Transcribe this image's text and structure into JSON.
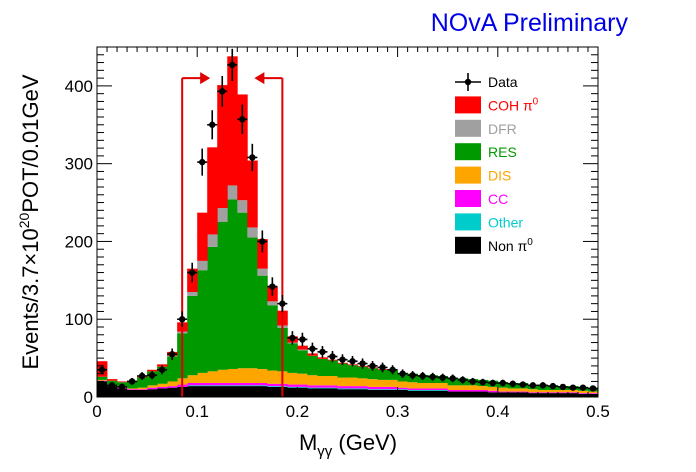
{
  "chart_data": {
    "type": "bar",
    "stacked": true,
    "title": "NOvA Preliminary",
    "title_color": "#0000e6",
    "xlabel": {
      "base": "M",
      "sub": "γγ",
      "unit": " (GeV)"
    },
    "ylabel": {
      "pre": "Events/3.7×10",
      "sup": "20",
      "post": "POT/0.01GeV"
    },
    "xlim": [
      0,
      0.5
    ],
    "ylim": [
      0,
      450
    ],
    "xticks": [
      0,
      0.1,
      0.2,
      0.3,
      0.4,
      0.5
    ],
    "xtick_labels": [
      "0",
      "0.1",
      "0.2",
      "0.3",
      "0.4",
      "0.5"
    ],
    "yticks": [
      0,
      100,
      200,
      300,
      400
    ],
    "ytick_labels": [
      "0",
      "100",
      "200",
      "300",
      "400"
    ],
    "bin_width": 0.01,
    "x": [
      0.005,
      0.015,
      0.025,
      0.035,
      0.045,
      0.055,
      0.065,
      0.075,
      0.085,
      0.095,
      0.105,
      0.115,
      0.125,
      0.135,
      0.145,
      0.155,
      0.165,
      0.175,
      0.185,
      0.195,
      0.205,
      0.215,
      0.225,
      0.235,
      0.245,
      0.255,
      0.265,
      0.275,
      0.285,
      0.295,
      0.305,
      0.315,
      0.325,
      0.335,
      0.345,
      0.355,
      0.365,
      0.375,
      0.385,
      0.395,
      0.405,
      0.415,
      0.425,
      0.435,
      0.445,
      0.455,
      0.465,
      0.475,
      0.485,
      0.495
    ],
    "series": [
      {
        "name": "Non π0",
        "legend_label": "Non π",
        "legend_sup": "0",
        "color": "#000000",
        "values": [
          20,
          14,
          11,
          9,
          9,
          10,
          11,
          12,
          13,
          14,
          14,
          14,
          14,
          14,
          14,
          14,
          14,
          13,
          13,
          12,
          12,
          11,
          11,
          11,
          10,
          10,
          10,
          9,
          9,
          9,
          9,
          8,
          8,
          8,
          8,
          7,
          7,
          7,
          7,
          6,
          6,
          6,
          6,
          5,
          5,
          5,
          5,
          5,
          4,
          4
        ]
      },
      {
        "name": "Other",
        "legend_label": "Other",
        "color": "#00cccc",
        "values": [
          0,
          0,
          0,
          0,
          0,
          0,
          0,
          0,
          0,
          1,
          1,
          1,
          1,
          1,
          1,
          1,
          1,
          1,
          1,
          1,
          1,
          1,
          1,
          1,
          1,
          1,
          1,
          1,
          1,
          1,
          1,
          1,
          1,
          1,
          1,
          0,
          0,
          0,
          0,
          0,
          0,
          0,
          0,
          0,
          0,
          0,
          0,
          0,
          0,
          0
        ]
      },
      {
        "name": "CC",
        "legend_label": "CC",
        "color": "#ff00ff",
        "values": [
          1,
          1,
          1,
          1,
          1,
          2,
          2,
          2,
          3,
          3,
          3,
          3,
          3,
          3,
          3,
          3,
          3,
          3,
          3,
          3,
          3,
          3,
          3,
          3,
          3,
          3,
          3,
          3,
          3,
          3,
          2,
          2,
          2,
          2,
          2,
          2,
          2,
          2,
          2,
          2,
          1,
          1,
          1,
          1,
          1,
          1,
          1,
          1,
          1,
          1
        ]
      },
      {
        "name": "DIS",
        "legend_label": "DIS",
        "color": "#ffa500",
        "values": [
          1,
          1,
          1,
          1,
          2,
          3,
          4,
          6,
          8,
          10,
          13,
          15,
          17,
          18,
          19,
          19,
          18,
          17,
          16,
          15,
          14,
          13,
          12,
          12,
          11,
          11,
          10,
          10,
          9,
          9,
          8,
          8,
          7,
          7,
          7,
          6,
          6,
          6,
          5,
          5,
          5,
          4,
          4,
          4,
          3,
          3,
          3,
          3,
          3,
          2
        ]
      },
      {
        "name": "RES",
        "legend_label": "RES",
        "color": "#009900",
        "values": [
          4,
          5,
          6,
          9,
          13,
          18,
          22,
          32,
          58,
          102,
          132,
          160,
          190,
          218,
          200,
          168,
          120,
          84,
          56,
          38,
          30,
          25,
          22,
          20,
          18,
          16,
          15,
          14,
          13,
          12,
          11,
          11,
          10,
          10,
          9,
          9,
          9,
          8,
          8,
          8,
          7,
          7,
          7,
          6,
          6,
          6,
          5,
          5,
          5,
          5
        ]
      },
      {
        "name": "DFR",
        "legend_label": "DFR",
        "color": "#a0a0a0",
        "values": [
          0,
          0,
          0,
          0,
          0,
          0,
          0,
          1,
          2,
          5,
          12,
          16,
          18,
          18,
          16,
          13,
          9,
          5,
          3,
          1,
          1,
          0,
          0,
          0,
          0,
          0,
          0,
          0,
          0,
          0,
          0,
          0,
          0,
          0,
          0,
          0,
          0,
          0,
          0,
          0,
          0,
          0,
          0,
          0,
          0,
          0,
          0,
          0,
          0,
          0
        ]
      },
      {
        "name": "COH π0",
        "legend_label": "COH π",
        "legend_sup": "0",
        "color": "#ff0000",
        "values": [
          20,
          2,
          1,
          1,
          1,
          2,
          3,
          5,
          12,
          30,
          62,
          112,
          158,
          166,
          136,
          86,
          38,
          19,
          19,
          8,
          5,
          3,
          2,
          1,
          1,
          1,
          1,
          1,
          1,
          0,
          0,
          0,
          0,
          0,
          0,
          0,
          0,
          0,
          0,
          0,
          0,
          0,
          0,
          0,
          0,
          0,
          0,
          0,
          0,
          0
        ]
      }
    ],
    "data_points": {
      "name": "Data",
      "legend_label": "Data",
      "color": "#000000",
      "values": [
        35,
        15,
        13,
        20,
        27,
        28,
        35,
        55,
        100,
        160,
        302,
        350,
        393,
        427,
        357,
        308,
        200,
        142,
        120,
        76,
        74,
        62,
        58,
        52,
        48,
        46,
        43,
        40,
        38,
        35,
        30,
        28,
        27,
        26,
        25,
        24,
        22,
        20,
        19,
        18,
        18,
        17,
        16,
        15,
        15,
        14,
        13,
        12,
        12,
        11
      ],
      "errors": [
        6,
        4,
        4,
        4.5,
        5,
        5.3,
        6,
        7.4,
        10,
        12.6,
        17.4,
        18.7,
        19.8,
        20.7,
        18.9,
        17.5,
        14.1,
        11.9,
        11,
        8.7,
        8.6,
        7.9,
        7.6,
        7.2,
        6.9,
        6.8,
        6.6,
        6.3,
        6.2,
        5.9,
        5.5,
        5.3,
        5.2,
        5.1,
        5,
        4.9,
        4.7,
        4.5,
        4.4,
        4.2,
        4.2,
        4.1,
        4,
        3.9,
        3.9,
        3.7,
        3.6,
        3.5,
        3.5,
        3.3
      ]
    },
    "selection_cut": {
      "low": 0.085,
      "high": 0.185,
      "arrow_level": 410,
      "color": "#e00000"
    },
    "legend_position": "top-right"
  }
}
